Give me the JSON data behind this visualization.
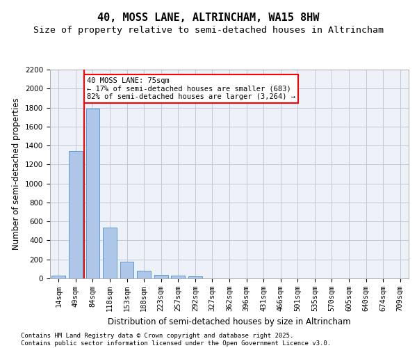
{
  "title": "40, MOSS LANE, ALTRINCHAM, WA15 8HW",
  "subtitle": "Size of property relative to semi-detached houses in Altrincham",
  "xlabel": "Distribution of semi-detached houses by size in Altrincham",
  "ylabel": "Number of semi-detached properties",
  "bins": [
    "14sqm",
    "49sqm",
    "84sqm",
    "118sqm",
    "153sqm",
    "188sqm",
    "223sqm",
    "257sqm",
    "292sqm",
    "327sqm",
    "362sqm",
    "396sqm",
    "431sqm",
    "466sqm",
    "501sqm",
    "535sqm",
    "570sqm",
    "605sqm",
    "640sqm",
    "674sqm",
    "709sqm"
  ],
  "bar_values": [
    30,
    1340,
    1790,
    535,
    175,
    80,
    35,
    28,
    20,
    0,
    0,
    0,
    0,
    0,
    0,
    0,
    0,
    0,
    0,
    0,
    0
  ],
  "bar_color": "#aec6e8",
  "bar_edge_color": "#5b9bd5",
  "background_color": "#eef2f8",
  "grid_color": "#c0c8d8",
  "vline_color": "red",
  "property_size": 75,
  "pct_smaller": 17,
  "count_smaller": 683,
  "pct_larger": 82,
  "count_larger": "3,264",
  "annotation_box_color": "red",
  "ylim": [
    0,
    2200
  ],
  "yticks": [
    0,
    200,
    400,
    600,
    800,
    1000,
    1200,
    1400,
    1600,
    1800,
    2000,
    2200
  ],
  "footnote1": "Contains HM Land Registry data © Crown copyright and database right 2025.",
  "footnote2": "Contains public sector information licensed under the Open Government Licence v3.0.",
  "title_fontsize": 11,
  "subtitle_fontsize": 9.5,
  "axis_label_fontsize": 8.5,
  "tick_fontsize": 7.5,
  "annotation_fontsize": 7.5,
  "footnote_fontsize": 6.5
}
